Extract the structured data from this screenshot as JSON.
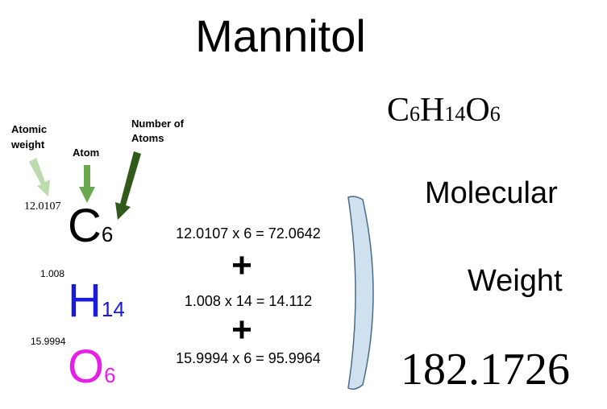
{
  "title": "Mannitol",
  "annotations": {
    "atomic_weight": [
      "Atomic",
      "weight"
    ],
    "atom": "Atom",
    "number_of_atoms": [
      "Number of",
      "Atoms"
    ]
  },
  "elements": [
    {
      "weight": "12.0107",
      "symbol": "C",
      "count": "6",
      "equation": "12.0107 x 6 = 72.0642"
    },
    {
      "weight": "1.008",
      "symbol": "H",
      "count": "14",
      "equation": "1.008 x 14 = 14.112"
    },
    {
      "weight": "15.9994",
      "symbol": "O",
      "count": "6",
      "equation": "15.9994 x 6 = 95.9964"
    }
  ],
  "operators": [
    "+",
    "+"
  ],
  "formula": [
    {
      "symbol": "C",
      "count": "6"
    },
    {
      "symbol": "H",
      "count": "14"
    },
    {
      "symbol": "O",
      "count": "6"
    }
  ],
  "result": {
    "label": [
      "Molecular",
      "Weight"
    ],
    "value": "182.1726"
  }
}
